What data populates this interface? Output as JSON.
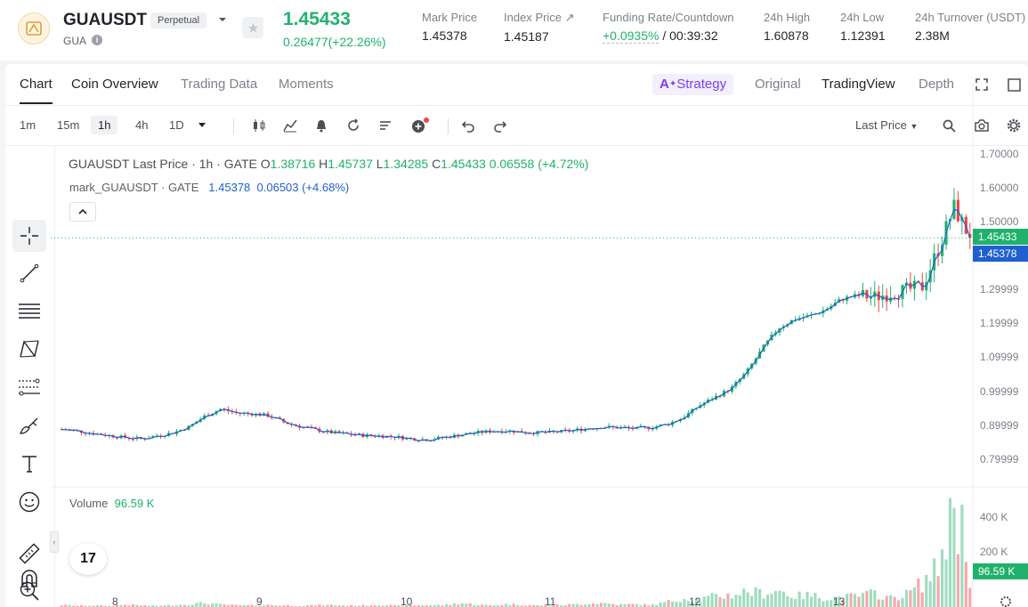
{
  "header": {
    "symbol": "GUAUSDT",
    "contract_type": "Perpetual",
    "base_asset": "GUA",
    "last_price": "1.45433",
    "change": "0.26477(+22.26%)",
    "stats": [
      {
        "label": "Mark Price",
        "value": "1.45378"
      },
      {
        "label": "Index Price ↗",
        "value": "1.45187"
      },
      {
        "label": "Funding Rate/Countdown",
        "value_rate": "+0.0935%",
        "value_countdown": "/ 00:39:32"
      },
      {
        "label": "24h High",
        "value": "1.60878"
      },
      {
        "label": "24h Low",
        "value": "1.12391"
      },
      {
        "label": "24h Turnover (USDT)",
        "value": "2.38M"
      }
    ],
    "colors": {
      "up": "#20b26c",
      "down": "#ef454a"
    }
  },
  "tabs": {
    "left": [
      "Chart",
      "Coin Overview",
      "Trading Data",
      "Moments"
    ],
    "active": "Chart",
    "strategy": "Strategy",
    "right": [
      "Original",
      "TradingView",
      "Depth"
    ],
    "selected_view": "TradingView"
  },
  "toolbar": {
    "timeframes": [
      "1m",
      "15m",
      "1h",
      "4h",
      "1D"
    ],
    "active_timeframe": "1h",
    "price_source": "Last Price"
  },
  "drawing_tools": [
    "crosshair-icon",
    "trend-line-icon",
    "horizontal-lines-icon",
    "pattern-icon",
    "fib-icon",
    "brush-icon",
    "text-icon",
    "emoji-icon",
    "ruler-icon",
    "zoom-in-icon",
    "magnet-icon"
  ],
  "legend": {
    "main_title": "GUAUSDT Last Price · 1h · GATE",
    "o_label": "O",
    "o": "1.38716",
    "h_label": "H",
    "h": "1.45737",
    "l_label": "L",
    "l": "1.34285",
    "c_label": "C",
    "c": "1.45433",
    "chg": "0.06558 (+4.72%)",
    "mark_title": "mark_GUAUSDT · GATE",
    "mark_value": "1.45378",
    "mark_chg": "0.06503 (+4.68%)",
    "volume_title": "Volume",
    "volume_value": "96.59 K"
  },
  "axis": {
    "price_ticks": [
      "1.70000",
      "1.60000",
      "1.50000",
      "1.29999",
      "1.19999",
      "1.09999",
      "0.99999",
      "0.89999",
      "0.79999"
    ],
    "last_price_tag": "1.45433",
    "mark_price_tag": "1.45378",
    "volume_ticks": [
      "400 K",
      "200 K"
    ],
    "volume_tag": "96.59 K",
    "x_ticks": [
      "8",
      "9",
      "10",
      "11",
      "12",
      "13"
    ]
  },
  "chart_data": {
    "type": "candlestick",
    "series_price_path": [
      0.89,
      0.885,
      0.878,
      0.872,
      0.866,
      0.862,
      0.871,
      0.88,
      0.898,
      0.93,
      0.95,
      0.938,
      0.936,
      0.93,
      0.91,
      0.898,
      0.888,
      0.88,
      0.876,
      0.872,
      0.871,
      0.868,
      0.862,
      0.86,
      0.866,
      0.874,
      0.88,
      0.885,
      0.886,
      0.882,
      0.88,
      0.882,
      0.886,
      0.893,
      0.897,
      0.895,
      0.892,
      0.896,
      0.905,
      0.925,
      0.96,
      0.985,
      1.01,
      1.06,
      1.13,
      1.19,
      1.215,
      1.225,
      1.245,
      1.275,
      1.285,
      1.28,
      1.292,
      1.3,
      1.31,
      1.42,
      1.545,
      1.454
    ],
    "volume_path": [
      10,
      6,
      8,
      5,
      12,
      8,
      6,
      10,
      14,
      20,
      12,
      9,
      8,
      10,
      8,
      6,
      9,
      10,
      7,
      8,
      12,
      6,
      8,
      10,
      9,
      20,
      12,
      8,
      15,
      10,
      8,
      9,
      12,
      18,
      20,
      12,
      14,
      10,
      25,
      45,
      38,
      55,
      60,
      80,
      70,
      85,
      55,
      60,
      45,
      50,
      55,
      70,
      45,
      65,
      120,
      200,
      520,
      95
    ],
    "y_range": [
      0.76,
      1.72
    ],
    "last_price": 1.45433,
    "mark_price": 1.45378
  }
}
